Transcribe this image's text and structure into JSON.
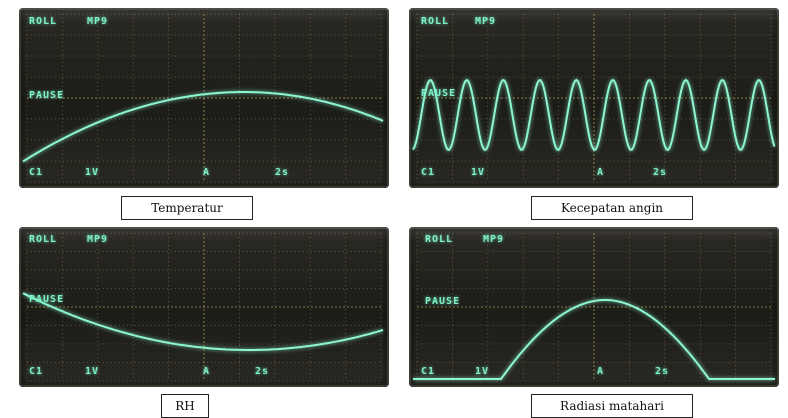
{
  "panels": [
    {
      "caption": "Temperatur",
      "osd": {
        "top_left": "ROLL",
        "top_mid": "MP9",
        "pause": "PAUSE",
        "channel": "C1",
        "volts": "1V",
        "trigger": "A",
        "time": "2s"
      }
    },
    {
      "caption": "Kecepatan angin",
      "osd": {
        "top_left": "ROLL",
        "top_mid": "MP9",
        "pause": "PAUSE",
        "channel": "C1",
        "volts": "1V",
        "trigger": "A",
        "time": "2s"
      }
    },
    {
      "caption": "RH",
      "osd": {
        "top_left": "ROLL",
        "top_mid": "MP9",
        "pause": "PAUSE",
        "channel": "C1",
        "volts": "1V",
        "trigger": "A",
        "time": "2s"
      }
    },
    {
      "caption": "Radiasi matahari",
      "osd": {
        "top_left": "ROLL",
        "top_mid": "MP9",
        "pause": "PAUSE",
        "channel": "C1",
        "volts": "1V",
        "trigger": "A",
        "time": "2s"
      }
    }
  ],
  "colors": {
    "trace": "#8ef5d2",
    "grid": "#b9a45a",
    "screen": "#1f1f1b"
  }
}
